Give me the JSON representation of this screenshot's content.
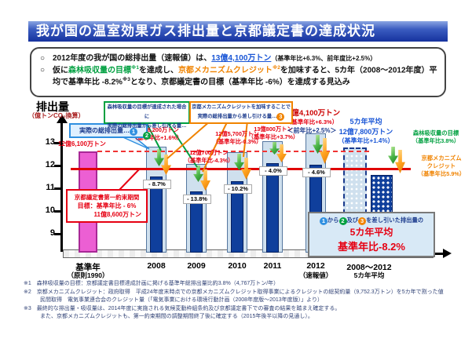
{
  "header": {
    "title": "我が国の温室効果ガス排出量と京都議定書の達成状況"
  },
  "bullets": {
    "marker": "○",
    "b1": {
      "t1": "2012年度の我が国の総排出量（速報値）は、",
      "value": "13億4,100万トン",
      "t2": "（基準年比+6.3%、前年度比+2.5%）"
    },
    "b2": {
      "t1": "仮に",
      "green": "森林吸収量の目標",
      "sup1": "※1",
      "t2": "を達成し、",
      "orange": "京都メカニズムクレジット",
      "sup2": "※2",
      "t3": "を加味すると、5カ年（2008～2012年度）平均で基準年比 -8.2%",
      "sup3": "※3",
      "t4": "となり、京都議定書の目標（基準年比 -6%）を達成する見込み"
    }
  },
  "axis": {
    "ylabel": "排出量",
    "yunit": "（億トンCO₂換算）"
  },
  "annotations": {
    "base_year": "12億6,100万トン",
    "y2008": {
      "l1": "12億8,200万トン",
      "l2": "（基準年比+1.6%）"
    },
    "y2009": {
      "l1": "12億700万トン",
      "l2": "（基準年比-4.3%）"
    },
    "y2010": {
      "l1": "12億5,700万トン",
      "l2": "（基準年比-0.3%）"
    },
    "y2011": {
      "l1": "13億800万トン",
      "l2": "（基準年比+3.7%）"
    },
    "y2012": {
      "l1": "13億4,100万トン",
      "l2": "（基準年比+6.3%）",
      "l3": "＜前年比+2.5%＞"
    },
    "avg5": {
      "l1": "5カ年平均",
      "l2": "12億7,800万トン",
      "l3": "（基準年比+1.4%）"
    },
    "forest": {
      "l1": "森林吸収量の目標",
      "l2": "（基準年比3.8%）"
    },
    "credit": {
      "l1": "京都メカニズム",
      "l2": "クレジット",
      "l3": "（基準年比5.9%）"
    }
  },
  "callouts": {
    "actual": {
      "text": "実際の総排出量…",
      "num": "1"
    },
    "forest": {
      "line1": "森林吸収量の目標が達成された場合に",
      "line2": "実際の総排出量から差し引ける量…",
      "num": "2"
    },
    "credit": {
      "line1": "京都メカニズムクレジットを加味することで",
      "line2": "実際の総排出量から差し引ける量…",
      "num": "3"
    },
    "target": {
      "line1": "京都議定書第一約束期間",
      "line2": "目標：基準年比 - 6%",
      "line3": "11億8,600万トン"
    },
    "summary": {
      "n1": "1",
      "p2": "から",
      "n2": "2",
      "p3": "及び",
      "n3": "3",
      "p4": "を差し引いた排出量の",
      "line2": "5カ年平均",
      "line3": "基準年比-8.2%"
    }
  },
  "footnotes": [
    "※1　森林吸収量の目標：京都議定書目標達成計画に掲げる基準年総排出量比約3.8%（4,767万トン/年）",
    "※2　京都メカニズムクレジット：政府取得　平成24年度末時点での京都メカニズムクレジット取得事業によるクレジットの総契約量（9,752.3万トン）を5カ年で割った値",
    "　　　民間取得　電気事業連合会のクレジット量（「電気事業における環境行動計画（2008年度版～2013年度版）」より）",
    "※3　最終的な排出量・吸収量は、2014年度に実施される気候変動枠組条約及び京都議定書下での審査の結果を踏まえ確定する。",
    "　　　また、京都メカニズムクレジットも、第一約束期間の調整期間終了後に確定する（2015年後半以降の見通し）。"
  ],
  "chart_data": {
    "type": "bar",
    "title": "我が国の温室効果ガス排出量と京都議定書の達成状況",
    "xlabel": "",
    "ylabel": "排出量（億トンCO₂換算）",
    "ylim": [
      8.6,
      13.6
    ],
    "yticks": [
      13,
      12,
      11,
      10,
      9
    ],
    "grid": false,
    "legend_position": "none",
    "categories": [
      "基準年\n（原則1990）",
      "2008",
      "2009",
      "2010",
      "2011",
      "2012\n（速報値）",
      "2008～2012\n5カ年平均"
    ],
    "series": [
      {
        "name": "実際の総排出量（①）",
        "values": [
          12.61,
          12.82,
          12.07,
          12.57,
          13.08,
          13.41,
          12.78
        ]
      },
      {
        "name": "①から②（森林吸収量）及び③（京都メカニズムクレジット）を差し引いた排出量",
        "values": [
          null,
          11.51,
          10.87,
          11.32,
          12.11,
          12.03,
          11.58
        ]
      }
    ],
    "net_labels": [
      "- 8.7%",
      "- 13.8%",
      "- 10.2%",
      "- 4.0%",
      "- 4.6%"
    ],
    "reference_lines": [
      {
        "label": "基準年総排出量 12億6,100万トン",
        "value": 12.61,
        "style": "dashed",
        "color": "#f03333"
      },
      {
        "label": "京都議定書第一約束期間 目標：基準年比-6%（11億8,600万トン）",
        "value": 11.86,
        "style": "solid",
        "color": "#e00000"
      }
    ]
  }
}
